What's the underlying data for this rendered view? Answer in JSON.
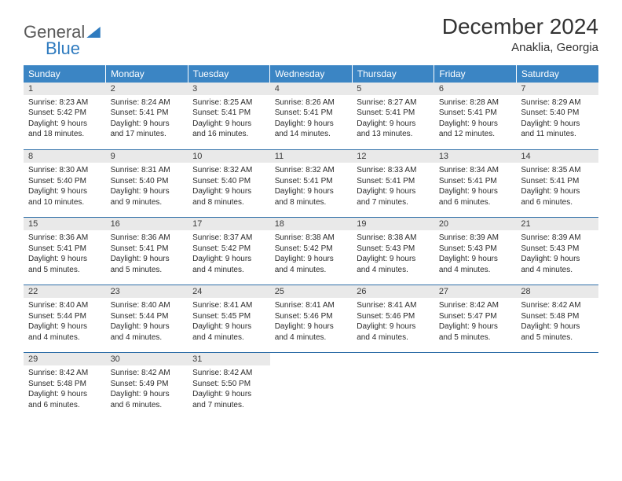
{
  "logo": {
    "word1": "General",
    "word2": "Blue"
  },
  "title": "December 2024",
  "location": "Anaklia, Georgia",
  "colors": {
    "header_bg": "#3b85c4",
    "header_text": "#ffffff",
    "daynum_bg": "#e9e9e9",
    "row_border": "#2f6fa8",
    "logo_gray": "#5a5a5a",
    "logo_blue": "#2f7bbf"
  },
  "dow": [
    "Sunday",
    "Monday",
    "Tuesday",
    "Wednesday",
    "Thursday",
    "Friday",
    "Saturday"
  ],
  "weeks": [
    [
      {
        "n": "1",
        "sr": "8:23 AM",
        "ss": "5:42 PM",
        "dh": "9",
        "dm": "18"
      },
      {
        "n": "2",
        "sr": "8:24 AM",
        "ss": "5:41 PM",
        "dh": "9",
        "dm": "17"
      },
      {
        "n": "3",
        "sr": "8:25 AM",
        "ss": "5:41 PM",
        "dh": "9",
        "dm": "16"
      },
      {
        "n": "4",
        "sr": "8:26 AM",
        "ss": "5:41 PM",
        "dh": "9",
        "dm": "14"
      },
      {
        "n": "5",
        "sr": "8:27 AM",
        "ss": "5:41 PM",
        "dh": "9",
        "dm": "13"
      },
      {
        "n": "6",
        "sr": "8:28 AM",
        "ss": "5:41 PM",
        "dh": "9",
        "dm": "12"
      },
      {
        "n": "7",
        "sr": "8:29 AM",
        "ss": "5:40 PM",
        "dh": "9",
        "dm": "11"
      }
    ],
    [
      {
        "n": "8",
        "sr": "8:30 AM",
        "ss": "5:40 PM",
        "dh": "9",
        "dm": "10"
      },
      {
        "n": "9",
        "sr": "8:31 AM",
        "ss": "5:40 PM",
        "dh": "9",
        "dm": "9"
      },
      {
        "n": "10",
        "sr": "8:32 AM",
        "ss": "5:40 PM",
        "dh": "9",
        "dm": "8"
      },
      {
        "n": "11",
        "sr": "8:32 AM",
        "ss": "5:41 PM",
        "dh": "9",
        "dm": "8"
      },
      {
        "n": "12",
        "sr": "8:33 AM",
        "ss": "5:41 PM",
        "dh": "9",
        "dm": "7"
      },
      {
        "n": "13",
        "sr": "8:34 AM",
        "ss": "5:41 PM",
        "dh": "9",
        "dm": "6"
      },
      {
        "n": "14",
        "sr": "8:35 AM",
        "ss": "5:41 PM",
        "dh": "9",
        "dm": "6"
      }
    ],
    [
      {
        "n": "15",
        "sr": "8:36 AM",
        "ss": "5:41 PM",
        "dh": "9",
        "dm": "5"
      },
      {
        "n": "16",
        "sr": "8:36 AM",
        "ss": "5:41 PM",
        "dh": "9",
        "dm": "5"
      },
      {
        "n": "17",
        "sr": "8:37 AM",
        "ss": "5:42 PM",
        "dh": "9",
        "dm": "4"
      },
      {
        "n": "18",
        "sr": "8:38 AM",
        "ss": "5:42 PM",
        "dh": "9",
        "dm": "4"
      },
      {
        "n": "19",
        "sr": "8:38 AM",
        "ss": "5:43 PM",
        "dh": "9",
        "dm": "4"
      },
      {
        "n": "20",
        "sr": "8:39 AM",
        "ss": "5:43 PM",
        "dh": "9",
        "dm": "4"
      },
      {
        "n": "21",
        "sr": "8:39 AM",
        "ss": "5:43 PM",
        "dh": "9",
        "dm": "4"
      }
    ],
    [
      {
        "n": "22",
        "sr": "8:40 AM",
        "ss": "5:44 PM",
        "dh": "9",
        "dm": "4"
      },
      {
        "n": "23",
        "sr": "8:40 AM",
        "ss": "5:44 PM",
        "dh": "9",
        "dm": "4"
      },
      {
        "n": "24",
        "sr": "8:41 AM",
        "ss": "5:45 PM",
        "dh": "9",
        "dm": "4"
      },
      {
        "n": "25",
        "sr": "8:41 AM",
        "ss": "5:46 PM",
        "dh": "9",
        "dm": "4"
      },
      {
        "n": "26",
        "sr": "8:41 AM",
        "ss": "5:46 PM",
        "dh": "9",
        "dm": "4"
      },
      {
        "n": "27",
        "sr": "8:42 AM",
        "ss": "5:47 PM",
        "dh": "9",
        "dm": "5"
      },
      {
        "n": "28",
        "sr": "8:42 AM",
        "ss": "5:48 PM",
        "dh": "9",
        "dm": "5"
      }
    ],
    [
      {
        "n": "29",
        "sr": "8:42 AM",
        "ss": "5:48 PM",
        "dh": "9",
        "dm": "6"
      },
      {
        "n": "30",
        "sr": "8:42 AM",
        "ss": "5:49 PM",
        "dh": "9",
        "dm": "6"
      },
      {
        "n": "31",
        "sr": "8:42 AM",
        "ss": "5:50 PM",
        "dh": "9",
        "dm": "7"
      },
      null,
      null,
      null,
      null
    ]
  ],
  "labels": {
    "sunrise": "Sunrise:",
    "sunset": "Sunset:",
    "daylight": "Daylight:",
    "hours": "hours",
    "and": "and",
    "minutes": "minutes."
  }
}
